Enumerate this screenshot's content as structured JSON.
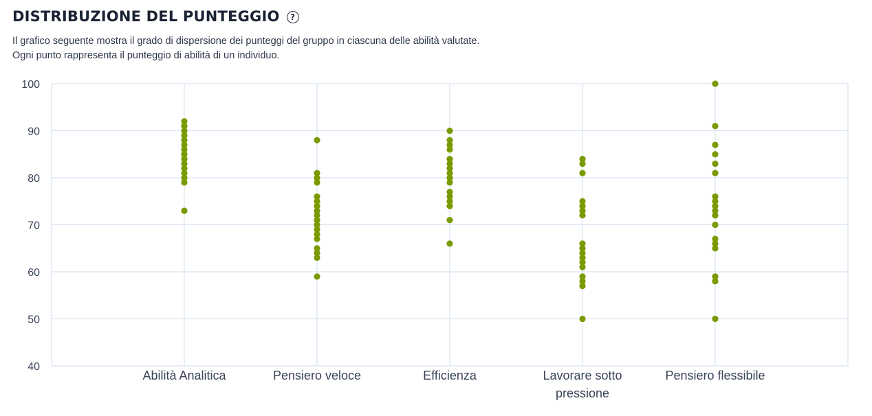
{
  "header": {
    "title": "DISTRIBUZIONE DEL PUNTEGGIO",
    "help_icon": "question-circle-icon"
  },
  "description": {
    "line1": "Il grafico seguente mostra il grado di dispersione dei punteggi del gruppo in ciascuna delle abilità valutate.",
    "line2": "Ogni punto rappresenta il punteggio di abilità di un individuo."
  },
  "colors": {
    "dot": "#7a9a01",
    "grid": "#cfdcef",
    "axis_text": "#3a4457"
  },
  "chart_data": {
    "type": "scatter",
    "title": "",
    "xlabel": "",
    "ylabel": "",
    "ylim": [
      40,
      100
    ],
    "yticks": [
      40,
      50,
      60,
      70,
      80,
      90,
      100
    ],
    "grid": true,
    "categories": [
      "Abilità Analitica",
      "Pensiero veloce",
      "Efficienza",
      "Lavorare sotto pressione",
      "Pensiero flessibile"
    ],
    "category_label_lines": [
      [
        "Abilità Analitica"
      ],
      [
        "Pensiero veloce"
      ],
      [
        "Efficienza"
      ],
      [
        "Lavorare sotto",
        "pressione"
      ],
      [
        "Pensiero flessibile"
      ]
    ],
    "series": [
      {
        "category": "Abilità Analitica",
        "values": [
          92,
          91,
          90,
          89,
          88,
          87,
          86,
          85,
          84,
          83,
          82,
          81,
          80,
          79,
          73
        ]
      },
      {
        "category": "Pensiero veloce",
        "values": [
          88,
          81,
          80,
          79,
          76,
          75,
          74,
          73,
          72,
          71,
          70,
          69,
          68,
          67,
          65,
          64,
          63,
          59
        ]
      },
      {
        "category": "Efficienza",
        "values": [
          90,
          88,
          87,
          86,
          84,
          83,
          82,
          81,
          80,
          79,
          77,
          76,
          75,
          74,
          71,
          66
        ]
      },
      {
        "category": "Lavorare sotto pressione",
        "values": [
          84,
          83,
          81,
          75,
          74,
          73,
          72,
          66,
          65,
          64,
          63,
          62,
          61,
          59,
          58,
          57,
          50
        ]
      },
      {
        "category": "Pensiero flessibile",
        "values": [
          100,
          91,
          87,
          85,
          83,
          81,
          76,
          75,
          74,
          73,
          72,
          70,
          67,
          66,
          65,
          59,
          58,
          50
        ]
      }
    ]
  }
}
